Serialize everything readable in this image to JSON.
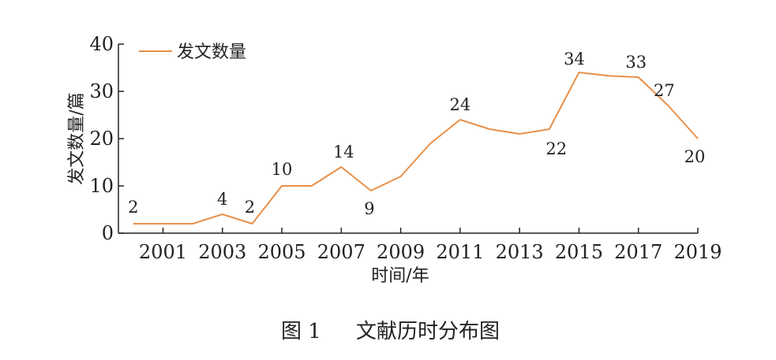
{
  "chart_data": {
    "type": "line",
    "xlabel": "时间/年",
    "ylabel": "发文数量/篇",
    "ylim": [
      0,
      40
    ],
    "yticks": [
      0,
      10,
      20,
      30,
      40
    ],
    "xlim": [
      1999.5,
      2019
    ],
    "xticks": [
      2001,
      2003,
      2005,
      2007,
      2009,
      2011,
      2013,
      2015,
      2017,
      2019
    ],
    "legend": "top-left",
    "grid": false,
    "series": [
      {
        "name": "发文数量",
        "color": "#E8904A",
        "x": [
          2000,
          2001,
          2002,
          2003,
          2004,
          2005,
          2006,
          2007,
          2008,
          2009,
          2010,
          2011,
          2012,
          2013,
          2014,
          2015,
          2016,
          2017,
          2018,
          2019
        ],
        "y": [
          2,
          2,
          2,
          4,
          2,
          10,
          10,
          14,
          9,
          12,
          19,
          24,
          22,
          21,
          22,
          34,
          33.3,
          33,
          27,
          20
        ]
      }
    ],
    "data_labels": [
      {
        "x": 2000,
        "text": "2"
      },
      {
        "x": 2003,
        "text": "4"
      },
      {
        "x": 2004,
        "text": "2"
      },
      {
        "x": 2005,
        "text": "10"
      },
      {
        "x": 2007,
        "text": "14"
      },
      {
        "x": 2008,
        "text": "9"
      },
      {
        "x": 2011,
        "text": "24"
      },
      {
        "x": 2014,
        "text": "22"
      },
      {
        "x": 2015,
        "text": "34"
      },
      {
        "x": 2017,
        "text": "33"
      },
      {
        "x": 2018,
        "text": "27"
      },
      {
        "x": 2019,
        "text": "20"
      }
    ]
  },
  "caption": {
    "figure_number": "图 1",
    "title": "文献历时分布图"
  }
}
